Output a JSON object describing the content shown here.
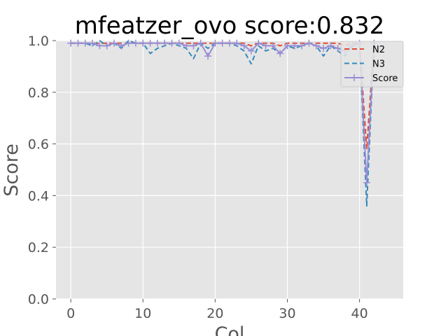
{
  "chart_data": {
    "type": "line",
    "title": "mfeatzer_ovo score:0.832",
    "xlabel": "Col",
    "ylabel": "Score",
    "xlim": [
      -2.05,
      46.05
    ],
    "ylim": [
      0.0,
      1.0
    ],
    "xticks": [
      0,
      10,
      20,
      30,
      40
    ],
    "yticks": [
      0.0,
      0.2,
      0.4,
      0.6,
      0.8,
      1.0
    ],
    "grid": true,
    "legend_position": "upper-right",
    "x": [
      0,
      1,
      2,
      3,
      4,
      5,
      6,
      7,
      8,
      9,
      10,
      11,
      12,
      13,
      14,
      15,
      16,
      17,
      18,
      19,
      20,
      21,
      22,
      23,
      24,
      25,
      26,
      27,
      28,
      29,
      30,
      31,
      32,
      33,
      34,
      35,
      36,
      37,
      38,
      39,
      40,
      41,
      42
    ],
    "series": [
      {
        "name": "N2",
        "color": "#E24A33",
        "style": "dashed",
        "values": [
          0.99,
          0.99,
          0.99,
          0.99,
          0.99,
          0.99,
          0.99,
          0.99,
          0.99,
          0.99,
          0.99,
          0.99,
          0.99,
          0.99,
          0.99,
          0.99,
          0.99,
          0.99,
          0.99,
          0.99,
          0.99,
          0.99,
          0.99,
          0.99,
          0.99,
          0.98,
          0.99,
          0.99,
          0.99,
          0.98,
          0.99,
          0.99,
          0.99,
          0.99,
          0.99,
          0.99,
          0.99,
          0.99,
          0.98,
          0.99,
          0.99,
          0.58,
          0.99
        ]
      },
      {
        "name": "N3",
        "color": "#348ABD",
        "style": "dashed",
        "values": [
          0.99,
          0.99,
          0.99,
          0.98,
          1.0,
          0.98,
          0.99,
          0.97,
          1.0,
          0.99,
          0.99,
          0.95,
          0.97,
          0.98,
          0.99,
          0.98,
          0.97,
          0.93,
          0.99,
          0.97,
          0.99,
          0.99,
          0.99,
          0.98,
          0.96,
          0.91,
          0.98,
          0.96,
          0.97,
          0.95,
          0.98,
          0.97,
          0.98,
          0.99,
          0.98,
          0.94,
          0.98,
          0.96,
          0.94,
          0.98,
          0.99,
          0.36,
          0.99
        ]
      },
      {
        "name": "Score",
        "color": "#988ED5",
        "style": "solid",
        "marker": "+",
        "values": [
          0.99,
          0.99,
          0.99,
          0.99,
          0.98,
          0.98,
          0.99,
          0.98,
          0.99,
          0.99,
          0.99,
          0.99,
          0.99,
          0.99,
          0.99,
          0.99,
          0.98,
          0.98,
          0.99,
          0.94,
          0.99,
          0.99,
          0.99,
          0.99,
          0.98,
          0.96,
          0.99,
          0.98,
          0.98,
          0.95,
          0.98,
          0.98,
          0.98,
          0.99,
          0.98,
          0.97,
          0.98,
          0.97,
          0.96,
          0.98,
          0.99,
          0.45,
          0.99
        ]
      }
    ]
  }
}
